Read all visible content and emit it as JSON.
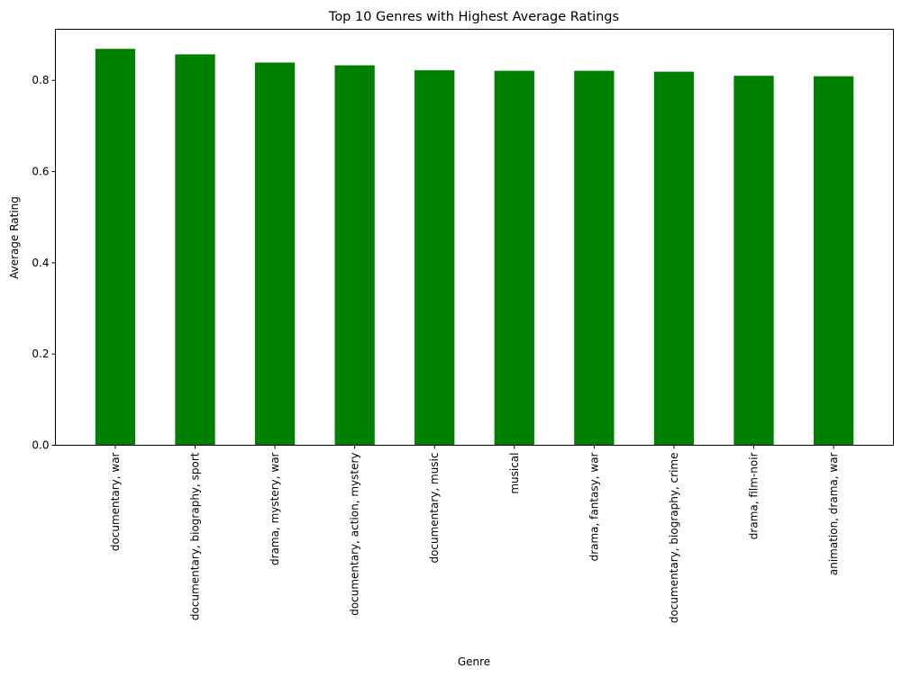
{
  "chart_data": {
    "type": "bar",
    "title": "Top 10 Genres with Highest Average Ratings",
    "xlabel": "Genre",
    "ylabel": "Average Rating",
    "categories": [
      "documentary, war",
      "documentary, biography, sport",
      "drama, mystery, war",
      "documentary, action, mystery",
      "documentary, music",
      "musical",
      "drama, fantasy, war",
      "documentary, biography, crime",
      "drama, film-noir",
      "animation, drama, war"
    ],
    "values": [
      0.869,
      0.857,
      0.839,
      0.833,
      0.822,
      0.821,
      0.821,
      0.819,
      0.81,
      0.809
    ],
    "ylim": [
      0,
      0.912
    ],
    "yticks": [
      0.0,
      0.2,
      0.4,
      0.6,
      0.8
    ],
    "ytick_labels": [
      "0.0",
      "0.2",
      "0.4",
      "0.6",
      "0.8"
    ],
    "bar_color": "#008000",
    "grid": false,
    "legend": false
  }
}
